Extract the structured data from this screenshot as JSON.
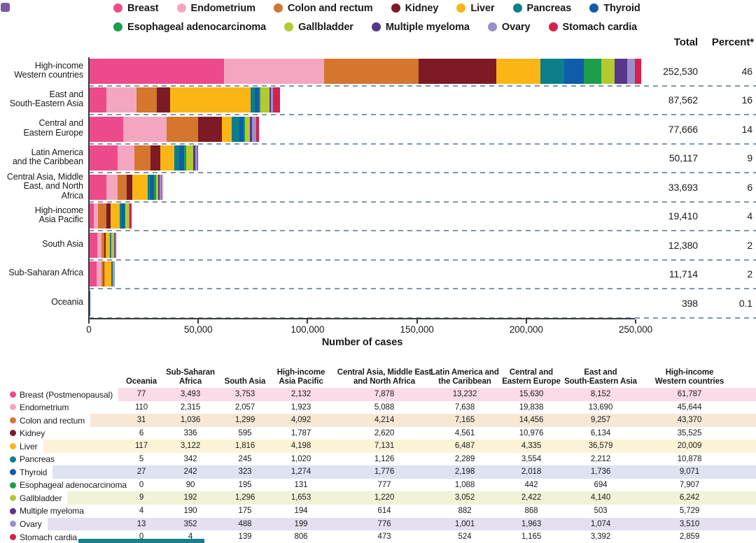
{
  "labels": {
    "total_header": "Total",
    "percent_header": "Percent*"
  },
  "chart_data": {
    "type": "stacked_bar_horizontal",
    "title": "",
    "xlabel": "Number of cases",
    "xlim": [
      0,
      250000
    ],
    "x_ticks": [
      0,
      50000,
      100000,
      150000,
      200000,
      250000
    ],
    "x_tick_labels": [
      "0",
      "50,000",
      "100,000",
      "150,000",
      "200,000",
      "250,000"
    ],
    "legend_order": [
      "breast",
      "endometrium",
      "colon",
      "kidney",
      "liver",
      "pancreas",
      "thyroid",
      "esophageal",
      "gallbladder",
      "myeloma",
      "ovary",
      "stomach"
    ],
    "legend_rows": [
      [
        {
          "key": "breast",
          "label": "Breast"
        },
        {
          "key": "endometrium",
          "label": "Endometrium"
        },
        {
          "key": "colon",
          "label": "Colon and rectum"
        },
        {
          "key": "kidney",
          "label": "Kidney"
        },
        {
          "key": "liver",
          "label": "Liver"
        },
        {
          "key": "pancreas",
          "label": "Pancreas"
        },
        {
          "key": "thyroid",
          "label": "Thyroid"
        }
      ],
      [
        {
          "key": "esophageal",
          "label": "Esophageal adenocarcinoma"
        },
        {
          "key": "gallbladder",
          "label": "Gallbladder"
        },
        {
          "key": "myeloma",
          "label": "Multiple myeloma"
        },
        {
          "key": "ovary",
          "label": "Ovary"
        },
        {
          "key": "stomach",
          "label": "Stomach cardia"
        }
      ]
    ],
    "colors": {
      "breast": "#ec4a8b",
      "endometrium": "#f4a6c0",
      "colon": "#d4762e",
      "kidney": "#7d1a26",
      "liver": "#fbb616",
      "pancreas": "#0c7f8a",
      "thyroid": "#0f5cab",
      "esophageal": "#1d9e4b",
      "gallbladder": "#b4c930",
      "myeloma": "#57368d",
      "ovary": "#9b90cb",
      "stomach": "#d62049"
    },
    "bar_rows": [
      {
        "name_lines": [
          "High-income",
          "Western countries"
        ],
        "col": 8,
        "total": 252530,
        "percent": "46"
      },
      {
        "name_lines": [
          "East and",
          "South-Eastern Asia"
        ],
        "col": 7,
        "total": 87562,
        "percent": "16"
      },
      {
        "name_lines": [
          "Central and",
          "Eastern Europe"
        ],
        "col": 6,
        "total": 77666,
        "percent": "14"
      },
      {
        "name_lines": [
          "Latin America",
          "and the Caribbean"
        ],
        "col": 5,
        "total": 50117,
        "percent": "9"
      },
      {
        "name_lines": [
          "Central Asia, Middle",
          "East, and North Africa"
        ],
        "col": 4,
        "total": 33693,
        "percent": "6"
      },
      {
        "name_lines": [
          "High-income",
          "Asia Pacific"
        ],
        "col": 3,
        "total": 19410,
        "percent": "4"
      },
      {
        "name_lines": [
          "South Asia"
        ],
        "col": 2,
        "total": 12380,
        "percent": "2"
      },
      {
        "name_lines": [
          "Sub-Saharan Africa"
        ],
        "col": 1,
        "total": 11714,
        "percent": "2"
      },
      {
        "name_lines": [
          "Oceania"
        ],
        "col": 0,
        "total": 398,
        "percent": "0.1"
      }
    ],
    "table_columns": [
      {
        "header_lines": [
          "Oceania"
        ]
      },
      {
        "header_lines": [
          "Sub-Saharan",
          "Africa"
        ]
      },
      {
        "header_lines": [
          "South Asia"
        ]
      },
      {
        "header_lines": [
          "High-income",
          "Asia Pacific"
        ]
      },
      {
        "header_lines": [
          "Central Asia, Middle East",
          "and North Africa"
        ]
      },
      {
        "header_lines": [
          "Latin America and",
          "the Caribbean"
        ]
      },
      {
        "header_lines": [
          "Central and",
          "Eastern Europe"
        ]
      },
      {
        "header_lines": [
          "East and",
          "South-Eastern Asia"
        ]
      },
      {
        "header_lines": [
          "High-income",
          "Western countries"
        ]
      }
    ],
    "series": [
      {
        "name": "Breast (Postmenopausal)",
        "key": "breast",
        "values": [
          77,
          3493,
          3753,
          2132,
          7878,
          13232,
          15630,
          8152,
          61787
        ]
      },
      {
        "name": "Endometrium",
        "key": "endometrium",
        "values": [
          110,
          2315,
          2057,
          1923,
          5088,
          7638,
          19838,
          13690,
          45644
        ]
      },
      {
        "name": "Colon and rectum",
        "key": "colon",
        "values": [
          31,
          1036,
          1299,
          4092,
          4214,
          7165,
          14456,
          9257,
          43370
        ]
      },
      {
        "name": "Kidney",
        "key": "kidney",
        "values": [
          6,
          336,
          595,
          1787,
          2620,
          4561,
          10976,
          6134,
          35525
        ]
      },
      {
        "name": "Liver",
        "key": "liver",
        "values": [
          117,
          3122,
          1816,
          4198,
          7131,
          6487,
          4335,
          36579,
          20009
        ]
      },
      {
        "name": "Pancreas",
        "key": "pancreas",
        "values": [
          5,
          342,
          245,
          1020,
          1126,
          2289,
          3554,
          2212,
          10878
        ]
      },
      {
        "name": "Thyroid",
        "key": "thyroid",
        "values": [
          27,
          242,
          323,
          1274,
          1776,
          2198,
          2018,
          1736,
          9071
        ]
      },
      {
        "name": "Esophageal adenocarcinoma",
        "key": "esophageal",
        "values": [
          0,
          90,
          195,
          131,
          777,
          1088,
          442,
          694,
          7907
        ]
      },
      {
        "name": "Gallbladder",
        "key": "gallbladder",
        "values": [
          9,
          192,
          1296,
          1653,
          1220,
          3052,
          2422,
          4140,
          6242
        ]
      },
      {
        "name": "Multiple myeloma",
        "key": "myeloma",
        "values": [
          4,
          190,
          175,
          194,
          614,
          882,
          868,
          503,
          5729
        ]
      },
      {
        "name": "Ovary",
        "key": "ovary",
        "values": [
          13,
          352,
          488,
          199,
          776,
          1001,
          1963,
          1074,
          3510
        ]
      },
      {
        "name": "Stomach cardia",
        "key": "stomach",
        "values": [
          0,
          4,
          139,
          806,
          473,
          524,
          1165,
          3392,
          2859
        ]
      }
    ],
    "row_tints": {
      "breast": "#fbdbe7",
      "colon": "#f7e8d6",
      "liver": "#fdf3d8",
      "thyroid": "#dee2f1",
      "gallbladder": "#f0f3d8",
      "ovary": "#e4e0f0"
    },
    "decor": {
      "corner_square_color": "#7a58a5",
      "bottom_strip_color": "#1a7f8c",
      "dash_color": "#7f97a8",
      "axis_color": "#3a3a3a"
    }
  }
}
